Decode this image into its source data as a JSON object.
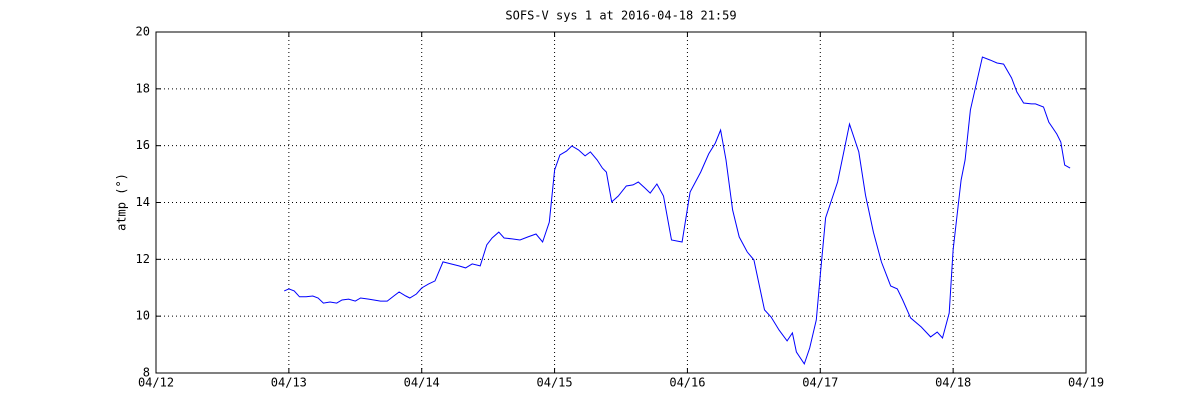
{
  "chart_data": {
    "type": "line",
    "title": "SOFS-V sys 1 at 2016-04-18 21:59",
    "y_label": "atmp (°)",
    "xlim": [
      0,
      7
    ],
    "xticks": [
      {
        "value": 0,
        "label": "04/12"
      },
      {
        "value": 1,
        "label": "04/13"
      },
      {
        "value": 2,
        "label": "04/14"
      },
      {
        "value": 3,
        "label": "04/15"
      },
      {
        "value": 4,
        "label": "04/16"
      },
      {
        "value": 5,
        "label": "04/17"
      },
      {
        "value": 6,
        "label": "04/18"
      },
      {
        "value": 7,
        "label": "04/19"
      }
    ],
    "ylim": [
      8,
      20
    ],
    "yticks": [
      8,
      10,
      12,
      14,
      16,
      18,
      20
    ],
    "grid": true,
    "series": [
      {
        "color": "#0000ff",
        "x": [
          0.965,
          1.0,
          1.04,
          1.08,
          1.13,
          1.18,
          1.22,
          1.26,
          1.31,
          1.36,
          1.4,
          1.45,
          1.5,
          1.54,
          1.6,
          1.64,
          1.69,
          1.74,
          1.79,
          1.83,
          1.88,
          1.91,
          1.96,
          2.0,
          2.05,
          2.1,
          2.16,
          2.22,
          2.28,
          2.33,
          2.38,
          2.44,
          2.49,
          2.53,
          2.58,
          2.62,
          2.68,
          2.74,
          2.8,
          2.86,
          2.91,
          2.96,
          3.0,
          3.04,
          3.09,
          3.13,
          3.18,
          3.23,
          3.27,
          3.32,
          3.36,
          3.39,
          3.43,
          3.48,
          3.54,
          3.59,
          3.63,
          3.68,
          3.72,
          3.77,
          3.82,
          3.88,
          3.96,
          4.02,
          4.1,
          4.16,
          4.21,
          4.25,
          4.29,
          4.34,
          4.39,
          4.45,
          4.5,
          4.58,
          4.63,
          4.69,
          4.75,
          4.79,
          4.82,
          4.88,
          4.92,
          4.97,
          5.0,
          5.04,
          5.13,
          5.22,
          5.29,
          5.34,
          5.4,
          5.46,
          5.53,
          5.58,
          5.62,
          5.68,
          5.76,
          5.83,
          5.88,
          5.92,
          5.97,
          6.0,
          6.06,
          6.09,
          6.13,
          6.22,
          6.28,
          6.33,
          6.38,
          6.44,
          6.48,
          6.53,
          6.59,
          6.62,
          6.68,
          6.72,
          6.78,
          6.81,
          6.84,
          6.88
        ],
        "values": [
          10.89,
          10.96,
          10.89,
          10.68,
          10.68,
          10.71,
          10.64,
          10.46,
          10.5,
          10.46,
          10.57,
          10.6,
          10.53,
          10.64,
          10.6,
          10.57,
          10.53,
          10.53,
          10.71,
          10.85,
          10.71,
          10.64,
          10.78,
          10.99,
          11.13,
          11.24,
          11.91,
          11.84,
          11.77,
          11.7,
          11.84,
          11.77,
          12.51,
          12.75,
          12.96,
          12.75,
          12.72,
          12.68,
          12.79,
          12.89,
          12.61,
          13.31,
          15.14,
          15.67,
          15.81,
          15.99,
          15.85,
          15.64,
          15.78,
          15.5,
          15.21,
          15.07,
          14.02,
          14.23,
          14.58,
          14.62,
          14.72,
          14.51,
          14.33,
          14.65,
          14.23,
          12.68,
          12.61,
          14.37,
          15.07,
          15.71,
          16.09,
          16.55,
          15.5,
          13.74,
          12.79,
          12.26,
          11.98,
          10.22,
          9.97,
          9.51,
          9.13,
          9.41,
          8.74,
          8.32,
          8.88,
          9.87,
          11.45,
          13.46,
          14.72,
          16.76,
          15.78,
          14.26,
          12.96,
          11.91,
          11.06,
          10.96,
          10.57,
          9.94,
          9.62,
          9.27,
          9.44,
          9.23,
          10.11,
          12.33,
          14.79,
          15.5,
          17.26,
          19.12,
          19.01,
          18.91,
          18.87,
          18.38,
          17.89,
          17.5,
          17.47,
          17.47,
          17.36,
          16.83,
          16.41,
          16.13,
          15.32,
          15.21
        ]
      }
    ]
  }
}
